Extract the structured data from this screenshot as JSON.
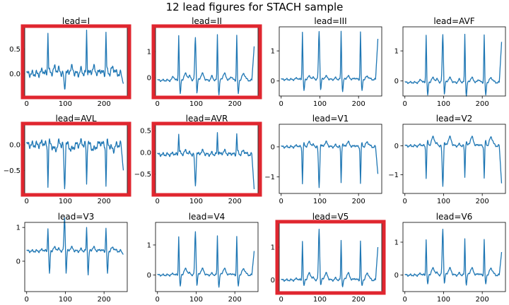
{
  "title": "12 lead figures for STACH sample",
  "colors": {
    "line": "#1f77b4",
    "highlight": "#e0262f",
    "axis": "#000000"
  },
  "chart_data": [
    {
      "type": "line",
      "title": "lead=I",
      "highlighted": true,
      "xlim": [
        -5,
        260
      ],
      "ylim": [
        -0.45,
        0.95
      ],
      "xticks": [
        0,
        100,
        200
      ],
      "yticks": [
        0.0,
        0.5
      ],
      "ytick_labels": [
        "0.0",
        "0.5"
      ],
      "baseline": 0.0,
      "r_amp": 0.87,
      "s_amp": 0.05,
      "t_amp": 0.12,
      "p_amp": 0.08,
      "wide_amp": -0.3,
      "end_value": -0.2,
      "noise": 0.08
    },
    {
      "type": "line",
      "title": "lead=II",
      "highlighted": true,
      "xlim": [
        -5,
        260
      ],
      "ylim": [
        -0.7,
        1.95
      ],
      "xticks": [
        0,
        100,
        200
      ],
      "yticks": [
        0,
        1
      ],
      "ytick_labels": [
        "0",
        "1"
      ],
      "baseline": -0.1,
      "r_amp": 1.75,
      "s_amp": -0.55,
      "t_amp": 0.25,
      "p_amp": 0.15,
      "wide_amp": 1.65,
      "end_value": 1.2,
      "noise": 0.05
    },
    {
      "type": "line",
      "title": "lead=III",
      "highlighted": false,
      "xlim": [
        -5,
        260
      ],
      "ylim": [
        -0.5,
        1.8
      ],
      "xticks": [
        0,
        100,
        200
      ],
      "yticks": [
        0,
        1
      ],
      "ytick_labels": [
        "0",
        "1"
      ],
      "baseline": 0.05,
      "r_amp": 1.6,
      "s_amp": -0.4,
      "t_amp": 0.1,
      "p_amp": 0.05,
      "wide_amp": 1.6,
      "end_value": 1.4,
      "noise": 0.04
    },
    {
      "type": "line",
      "title": "lead=AVF",
      "highlighted": false,
      "xlim": [
        -5,
        260
      ],
      "ylim": [
        -0.5,
        1.8
      ],
      "xticks": [
        0,
        100,
        200
      ],
      "yticks": [
        0,
        1
      ],
      "ytick_labels": [
        "0",
        "1"
      ],
      "baseline": -0.05,
      "r_amp": 1.6,
      "s_amp": -0.45,
      "t_amp": 0.15,
      "p_amp": 0.1,
      "wide_amp": 1.6,
      "end_value": 1.3,
      "noise": 0.04
    },
    {
      "type": "line",
      "title": "lead=AVL",
      "highlighted": true,
      "xlim": [
        -5,
        260
      ],
      "ylim": [
        -0.95,
        0.4
      ],
      "xticks": [
        0,
        100,
        200
      ],
      "yticks": [
        0.0,
        -0.5
      ],
      "ytick_labels": [
        "0.0",
        "−0.5"
      ],
      "baseline": 0.0,
      "r_amp": -0.78,
      "s_amp": 0.05,
      "t_amp": -0.1,
      "p_amp": 0.05,
      "wide_amp": -0.85,
      "end_value": -0.5,
      "noise": 0.08
    },
    {
      "type": "line",
      "title": "lead=AVR",
      "highlighted": true,
      "xlim": [
        -5,
        260
      ],
      "ylim": [
        -0.95,
        0.65
      ],
      "xticks": [
        0,
        100,
        200
      ],
      "yticks": [
        0.5,
        0.0,
        -0.5
      ],
      "ytick_labels": [
        "0.5",
        "0.0",
        "−0.5"
      ],
      "baseline": -0.05,
      "r_amp": 0.5,
      "s_amp": 0.05,
      "t_amp": 0.08,
      "p_amp": 0.03,
      "wide_amp": -0.72,
      "end_value": -0.85,
      "noise": 0.05
    },
    {
      "type": "line",
      "title": "lead=V1",
      "highlighted": false,
      "xlim": [
        -5,
        260
      ],
      "ylim": [
        -1.55,
        0.75
      ],
      "xticks": [
        0,
        100,
        200
      ],
      "yticks": [
        0,
        -1
      ],
      "ytick_labels": [
        "0",
        "−1"
      ],
      "baseline": 0.0,
      "r_amp": -1.2,
      "s_amp": 0.1,
      "t_amp": 0.15,
      "p_amp": 0.05,
      "wide_amp": -1.35,
      "end_value": -0.9,
      "noise": 0.05
    },
    {
      "type": "line",
      "title": "lead=V2",
      "highlighted": false,
      "xlim": [
        -5,
        260
      ],
      "ylim": [
        -1.65,
        0.75
      ],
      "xticks": [
        0,
        100,
        200
      ],
      "yticks": [
        0,
        -1
      ],
      "ytick_labels": [
        "0",
        "−1"
      ],
      "baseline": 0.0,
      "r_amp": -1.1,
      "s_amp": 0.15,
      "t_amp": 0.3,
      "p_amp": 0.05,
      "wide_amp": -1.4,
      "end_value": -1.3,
      "noise": 0.05
    },
    {
      "type": "line",
      "title": "lead=V3",
      "highlighted": false,
      "xlim": [
        -5,
        260
      ],
      "ylim": [
        -0.9,
        1.15
      ],
      "xticks": [
        0,
        100,
        200
      ],
      "yticks": [
        1,
        0
      ],
      "ytick_labels": [
        "1",
        "0"
      ],
      "baseline": 0.3,
      "r_amp": 0.7,
      "s_amp": -0.7,
      "t_amp": 0.1,
      "p_amp": 0.05,
      "wide_amp": 1.0,
      "end_value": 0.2,
      "noise": 0.05
    },
    {
      "type": "line",
      "title": "lead=V4",
      "highlighted": false,
      "xlim": [
        -5,
        260
      ],
      "ylim": [
        -0.55,
        1.75
      ],
      "xticks": [
        0,
        100,
        200
      ],
      "yticks": [
        1,
        0
      ],
      "ytick_labels": [
        "1",
        "0"
      ],
      "baseline": 0.0,
      "r_amp": 1.3,
      "s_amp": -0.4,
      "t_amp": 0.2,
      "p_amp": 0.05,
      "wide_amp": 1.45,
      "end_value": 0.8,
      "noise": 0.04
    },
    {
      "type": "line",
      "title": "lead=V5",
      "highlighted": true,
      "xlim": [
        -5,
        260
      ],
      "ylim": [
        -0.35,
        1.75
      ],
      "xticks": [
        0,
        100,
        200
      ],
      "yticks": [
        1,
        0
      ],
      "ytick_labels": [
        "1",
        "0"
      ],
      "baseline": 0.0,
      "r_amp": 1.2,
      "s_amp": -0.2,
      "t_amp": 0.2,
      "p_amp": 0.05,
      "wide_amp": 1.55,
      "end_value": 1.0,
      "noise": 0.04
    },
    {
      "type": "line",
      "title": "lead=V6",
      "highlighted": false,
      "xlim": [
        -5,
        260
      ],
      "ylim": [
        -0.5,
        1.6
      ],
      "xticks": [
        0,
        100,
        200
      ],
      "yticks": [
        1,
        0
      ],
      "ytick_labels": [
        "1",
        "0"
      ],
      "baseline": 0.0,
      "r_amp": 1.1,
      "s_amp": -0.3,
      "t_amp": 0.2,
      "p_amp": 0.05,
      "wide_amp": 1.4,
      "end_value": 0.7,
      "noise": 0.04
    }
  ]
}
